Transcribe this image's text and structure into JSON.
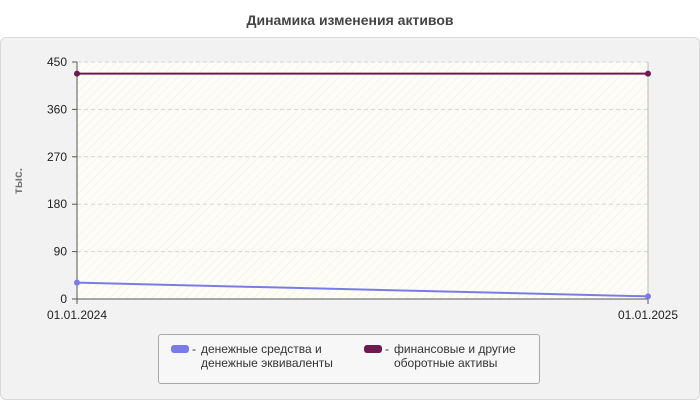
{
  "chart_data": {
    "type": "line",
    "title": "Динамика изменения активов",
    "ylabel": "тыс.",
    "xlabel": "",
    "x": [
      "01.01.2024",
      "01.01.2025"
    ],
    "ylim": [
      0,
      450
    ],
    "yticks": [
      0,
      90,
      180,
      270,
      360,
      450
    ],
    "grid": true,
    "legend_position": "bottom",
    "series": [
      {
        "name": "денежные средства и\nденежные эквиваленты",
        "values": [
          31,
          5
        ],
        "color": "#7b7be8"
      },
      {
        "name": "финансовые и другие\nоборотные активы",
        "values": [
          428,
          428
        ],
        "color": "#6e1a52"
      }
    ]
  },
  "legend": {
    "separator": "-"
  }
}
